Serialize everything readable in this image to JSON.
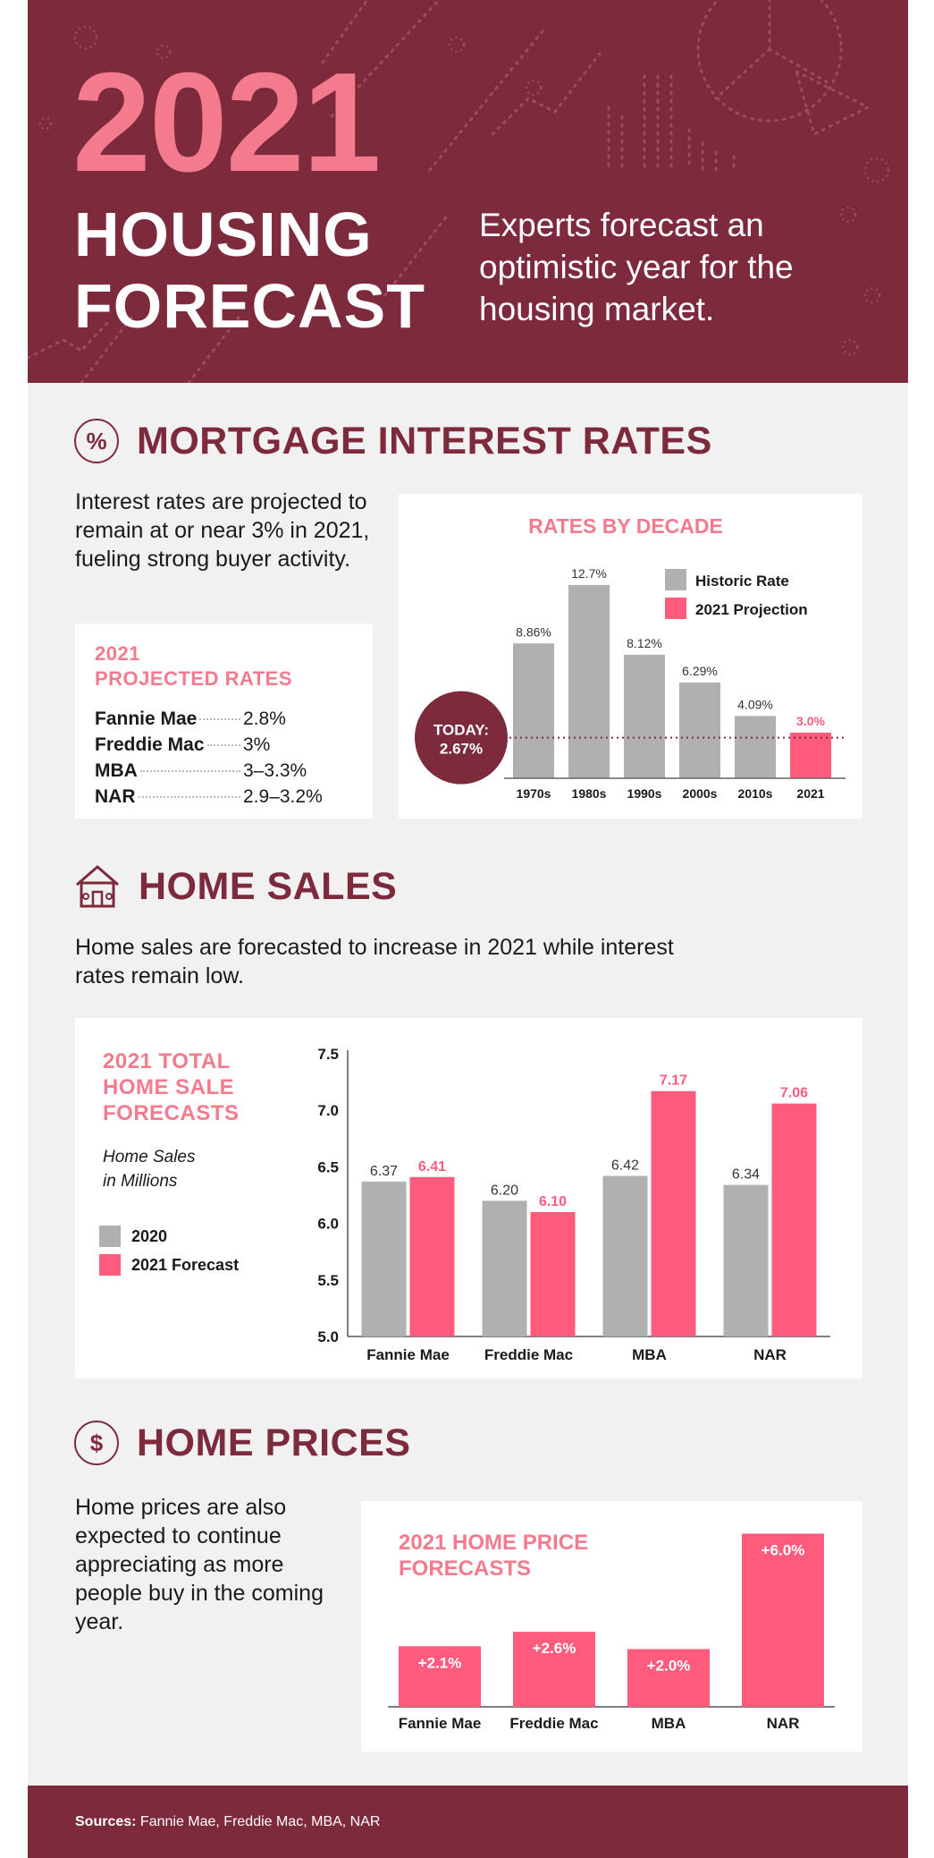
{
  "colors": {
    "maroon": "#7d2a3c",
    "pink": "#f47b8e",
    "bar_pink": "#ff5c7d",
    "grey": "#b0b0b0",
    "background": "#f2f1f1"
  },
  "hero": {
    "year": "2021",
    "title_line1": "HOUSING",
    "title_line2": "FORECAST",
    "subtitle": "Experts forecast an optimistic year for the housing market."
  },
  "mortgage": {
    "icon": "percent-icon",
    "title": "MORTGAGE INTEREST RATES",
    "body": "Interest rates are projected to remain at or near 3% in 2021, fueling strong buyer activity.",
    "projected": {
      "title_line1": "2021",
      "title_line2": "PROJECTED RATES",
      "rows": [
        {
          "name": "Fannie Mae",
          "value": "2.8%"
        },
        {
          "name": "Freddie Mac",
          "value": "3%"
        },
        {
          "name": "MBA",
          "value": "3–3.3%"
        },
        {
          "name": "NAR",
          "value": "2.9–3.2%"
        }
      ]
    },
    "today_label": "TODAY:",
    "today_value": "2.67%"
  },
  "sales": {
    "icon": "house-icon",
    "title": "HOME SALES",
    "body": "Home sales are forecasted to increase in 2021 while interest rates remain low.",
    "card_title": [
      "2021 TOTAL",
      "HOME SALE",
      "FORECASTS"
    ],
    "units_line1": "Home Sales",
    "units_line2": "in Millions"
  },
  "prices": {
    "icon": "dollar-icon",
    "title": "HOME PRICES",
    "body": "Home prices are also expected to continue appreciating as more people buy in the coming year."
  },
  "footer": {
    "label": "Sources:",
    "text": "Fannie Mae, Freddie Mac, MBA, NAR"
  },
  "chart_data": [
    {
      "type": "bar",
      "title": "RATES BY DECADE",
      "categories": [
        "1970s",
        "1980s",
        "1990s",
        "2000s",
        "2010s",
        "2021"
      ],
      "value_labels": [
        "8.86%",
        "12.7%",
        "8.12%",
        "6.29%",
        "4.09%",
        "3.0%"
      ],
      "values": [
        8.86,
        12.7,
        8.12,
        6.29,
        4.09,
        3.0
      ],
      "legend": [
        "Historic Rate",
        "2021 Projection"
      ],
      "reference_line": 2.67,
      "ylim": [
        0,
        13.5
      ],
      "legend_position": "top-right"
    },
    {
      "type": "bar",
      "title": "2021 TOTAL HOME SALE FORECASTS",
      "categories": [
        "Fannie Mae",
        "Freddie Mac",
        "MBA",
        "NAR"
      ],
      "series": [
        {
          "name": "2020",
          "values": [
            6.37,
            6.2,
            6.42,
            6.34
          ],
          "labels": [
            "6.37",
            "6.20",
            "6.42",
            "6.34"
          ]
        },
        {
          "name": "2021 Forecast",
          "values": [
            6.41,
            6.1,
            7.17,
            7.06
          ],
          "labels": [
            "6.41",
            "6.10",
            "7.17",
            "7.06"
          ]
        }
      ],
      "ylim": [
        5.0,
        7.5
      ],
      "yticks": [
        "5.0",
        "5.5",
        "6.0",
        "6.5",
        "7.0",
        "7.5"
      ],
      "legend_position": "left"
    },
    {
      "type": "bar",
      "title": "2021 HOME PRICE FORECASTS",
      "categories": [
        "Fannie Mae",
        "Freddie Mac",
        "MBA",
        "NAR"
      ],
      "values": [
        2.1,
        2.6,
        2.0,
        6.0
      ],
      "value_labels": [
        "+2.1%",
        "+2.6%",
        "+2.0%",
        "+6.0%"
      ],
      "ylim": [
        0,
        6.2
      ]
    }
  ]
}
